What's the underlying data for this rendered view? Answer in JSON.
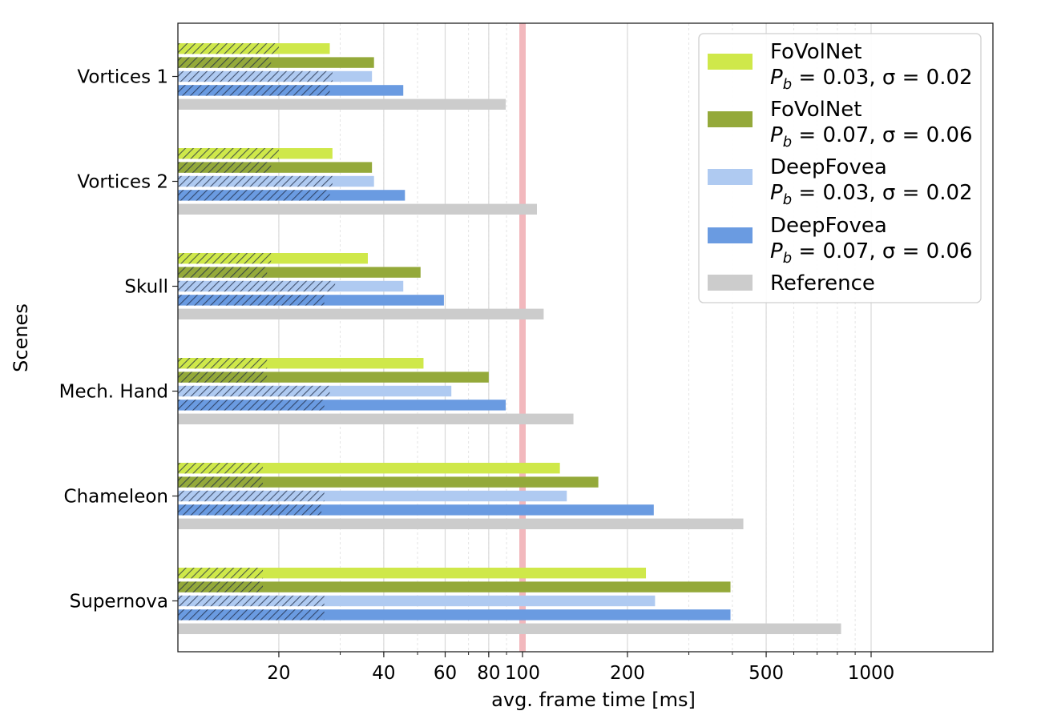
{
  "chart_data": {
    "type": "bar",
    "orientation": "horizontal",
    "x_scale": "log",
    "xlabel": "avg. frame time [ms]",
    "ylabel": "Scenes",
    "xlim": [
      10,
      1000
    ],
    "x_ticks": [
      20,
      40,
      60,
      80,
      100,
      200,
      500,
      1000
    ],
    "x_tick_labels": [
      "20",
      "40",
      "60",
      "80",
      "100",
      "200",
      "500",
      "1000"
    ],
    "reference_line": {
      "x": 100,
      "color": "#f2b8bd"
    },
    "grid": "x-major-and-minor",
    "legend_placement": "top-right",
    "categories": [
      "Vortices 1",
      "Vortices 2",
      "Skull",
      "Mech. Hand",
      "Chameleon",
      "Supernova"
    ],
    "series": [
      {
        "name_line1": "FoVolNet",
        "name_line2": "P_b = 0.03, σ = 0.02",
        "legend_sub": "b",
        "legend_tail": " = 0.03, σ = 0.02",
        "color": "#cfe84a",
        "values": [
          28,
          28.5,
          36,
          52,
          128,
          226
        ],
        "hatched_values": [
          20,
          20,
          19,
          18.5,
          18,
          18
        ]
      },
      {
        "name_line1": "FoVolNet",
        "name_line2": "P_b = 0.07, σ = 0.06",
        "legend_sub": "b",
        "legend_tail": " = 0.07, σ = 0.06",
        "color": "#94a93a",
        "values": [
          37.5,
          37,
          51,
          80,
          165,
          395
        ],
        "hatched_values": [
          19,
          19,
          18.5,
          18.5,
          18,
          18
        ]
      },
      {
        "name_line1": "DeepFovea",
        "name_line2": "P_b = 0.03, σ = 0.02",
        "legend_sub": "b",
        "legend_tail": " = 0.03, σ = 0.02",
        "color": "#afcaf1",
        "values": [
          37,
          37.5,
          45.5,
          62.5,
          134,
          240
        ],
        "hatched_values": [
          28.5,
          28.5,
          29,
          28,
          27,
          27
        ]
      },
      {
        "name_line1": "DeepFovea",
        "name_line2": "P_b = 0.07, σ = 0.06",
        "legend_sub": "b",
        "legend_tail": " = 0.07, σ = 0.06",
        "color": "#6a9be1",
        "values": [
          45.5,
          46,
          59.5,
          89.5,
          238,
          395
        ],
        "hatched_values": [
          28,
          28,
          27,
          27,
          26.5,
          27
        ]
      },
      {
        "name_line1": "Reference",
        "name_line2": "",
        "color": "#cccccc",
        "values": [
          89.5,
          110,
          115,
          140,
          430,
          820
        ],
        "hatched_values": null
      }
    ]
  }
}
